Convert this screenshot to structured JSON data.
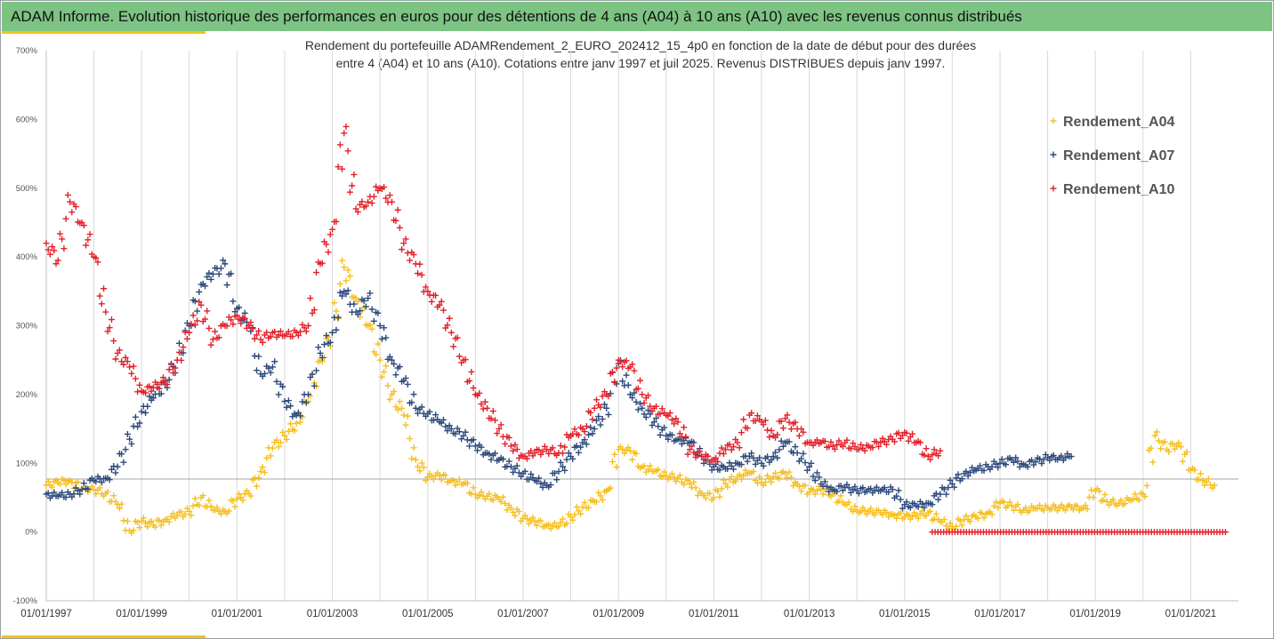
{
  "header": {
    "title": "ADAM Informe. Evolution historique des performances en euros pour des détentions de 4 ans (A04) à 10 ans (A10) avec les revenus connus distribués"
  },
  "colors": {
    "header_bg": "#7dc383",
    "accent": "#f3c31d",
    "gridline": "#d9d9d9",
    "hline": "#a6a6a6"
  },
  "chart_data": {
    "type": "scatter",
    "title": "Rendement du portefeuille ADAMRendement_2_EURO_202412_15_4p0  en fonction de la date de début pour des durées",
    "subtitle": "entre 4 (A04) et 10 ans (A10). Cotations  entre janv 1997 et juil 2025. Revenus DISTRIBUES depuis janv 1997.",
    "xlabel": "",
    "ylabel": "",
    "x_range": [
      "1997-01-01",
      "2022-01-01"
    ],
    "ylim": [
      -100,
      700
    ],
    "y_ticks": [
      -100,
      0,
      100,
      200,
      300,
      400,
      500,
      600,
      700
    ],
    "y_tick_labels": [
      "-100%",
      "0%",
      "100%",
      "200%",
      "300%",
      "400%",
      "500%",
      "600%",
      "700%"
    ],
    "x_ticks": [
      "1997-01-01",
      "1999-01-01",
      "2001-01-01",
      "2003-01-01",
      "2005-01-01",
      "2007-01-01",
      "2009-01-01",
      "2011-01-01",
      "2013-01-01",
      "2015-01-01",
      "2017-01-01",
      "2019-01-01",
      "2021-01-01"
    ],
    "x_tick_labels": [
      "01/01/1997",
      "01/01/1999",
      "01/01/2001",
      "01/01/2003",
      "01/01/2005",
      "01/01/2007",
      "01/01/2009",
      "01/01/2011",
      "01/01/2013",
      "01/01/2015",
      "01/01/2017",
      "01/01/2019",
      "01/01/2021"
    ],
    "reference_line_y": 77,
    "marker": "+",
    "grid": "vertical",
    "legend": "right",
    "series": [
      {
        "name": "Rendement_A04",
        "color": "#f6bf1f",
        "points": [
          [
            "1997-01-01",
            68
          ],
          [
            "1997-04-01",
            72
          ],
          [
            "1997-07-01",
            75
          ],
          [
            "1997-10-01",
            62
          ],
          [
            "1998-01-01",
            62
          ],
          [
            "1998-04-01",
            56
          ],
          [
            "1998-07-01",
            40
          ],
          [
            "1998-10-01",
            2
          ],
          [
            "1999-01-01",
            16
          ],
          [
            "1999-04-01",
            10
          ],
          [
            "1999-07-01",
            18
          ],
          [
            "1999-10-01",
            24
          ],
          [
            "2000-01-01",
            30
          ],
          [
            "2000-04-01",
            50
          ],
          [
            "2000-07-01",
            32
          ],
          [
            "2000-10-01",
            30
          ],
          [
            "2001-01-01",
            48
          ],
          [
            "2001-04-01",
            56
          ],
          [
            "2001-07-01",
            88
          ],
          [
            "2001-10-01",
            122
          ],
          [
            "2002-01-01",
            140
          ],
          [
            "2002-04-01",
            158
          ],
          [
            "2002-07-01",
            190
          ],
          [
            "2002-10-01",
            250
          ],
          [
            "2003-01-01",
            290
          ],
          [
            "2003-04-01",
            385
          ],
          [
            "2003-07-01",
            340
          ],
          [
            "2003-10-01",
            300
          ],
          [
            "2004-01-01",
            250
          ],
          [
            "2004-04-01",
            200
          ],
          [
            "2004-07-01",
            170
          ],
          [
            "2004-10-01",
            105
          ],
          [
            "2005-01-01",
            80
          ],
          [
            "2005-04-01",
            82
          ],
          [
            "2005-07-01",
            75
          ],
          [
            "2005-10-01",
            70
          ],
          [
            "2006-01-01",
            55
          ],
          [
            "2006-04-01",
            52
          ],
          [
            "2006-07-01",
            48
          ],
          [
            "2006-10-01",
            35
          ],
          [
            "2007-01-01",
            20
          ],
          [
            "2007-04-01",
            15
          ],
          [
            "2007-07-01",
            10
          ],
          [
            "2007-10-01",
            8
          ],
          [
            "2008-01-01",
            22
          ],
          [
            "2008-04-01",
            36
          ],
          [
            "2008-07-01",
            44
          ],
          [
            "2008-10-01",
            60
          ],
          [
            "2009-01-01",
            120
          ],
          [
            "2009-04-01",
            118
          ],
          [
            "2009-07-01",
            95
          ],
          [
            "2009-10-01",
            88
          ],
          [
            "2010-01-01",
            82
          ],
          [
            "2010-04-01",
            78
          ],
          [
            "2010-07-01",
            70
          ],
          [
            "2010-10-01",
            56
          ],
          [
            "2011-01-01",
            50
          ],
          [
            "2011-04-01",
            70
          ],
          [
            "2011-07-01",
            80
          ],
          [
            "2011-10-01",
            86
          ],
          [
            "2012-01-01",
            72
          ],
          [
            "2012-04-01",
            80
          ],
          [
            "2012-07-01",
            85
          ],
          [
            "2012-10-01",
            70
          ],
          [
            "2013-01-01",
            58
          ],
          [
            "2013-04-01",
            62
          ],
          [
            "2013-07-01",
            55
          ],
          [
            "2013-10-01",
            40
          ],
          [
            "2014-01-01",
            32
          ],
          [
            "2014-04-01",
            30
          ],
          [
            "2014-07-01",
            28
          ],
          [
            "2014-10-01",
            26
          ],
          [
            "2015-01-01",
            22
          ],
          [
            "2015-04-01",
            24
          ],
          [
            "2015-07-01",
            28
          ],
          [
            "2015-10-01",
            15
          ],
          [
            "2016-01-01",
            8
          ],
          [
            "2016-04-01",
            18
          ],
          [
            "2016-07-01",
            22
          ],
          [
            "2016-10-01",
            28
          ],
          [
            "2017-01-01",
            42
          ],
          [
            "2017-04-01",
            38
          ],
          [
            "2017-07-01",
            32
          ],
          [
            "2017-10-01",
            34
          ],
          [
            "2018-01-01",
            36
          ],
          [
            "2018-04-01",
            35
          ],
          [
            "2018-07-01",
            36
          ],
          [
            "2018-10-01",
            35
          ],
          [
            "2019-01-01",
            60
          ],
          [
            "2019-04-01",
            44
          ],
          [
            "2019-07-01",
            42
          ],
          [
            "2019-10-01",
            46
          ],
          [
            "2020-01-01",
            55
          ],
          [
            "2020-04-01",
            140
          ],
          [
            "2020-07-01",
            120
          ],
          [
            "2020-10-01",
            130
          ],
          [
            "2021-01-01",
            90
          ],
          [
            "2021-04-01",
            75
          ],
          [
            "2021-07-01",
            68
          ]
        ]
      },
      {
        "name": "Rendement_A07",
        "color": "#2d4a7c",
        "points": [
          [
            "1997-01-01",
            55
          ],
          [
            "1997-04-01",
            52
          ],
          [
            "1997-07-01",
            55
          ],
          [
            "1997-10-01",
            62
          ],
          [
            "1998-01-01",
            75
          ],
          [
            "1998-04-01",
            78
          ],
          [
            "1998-07-01",
            95
          ],
          [
            "1998-10-01",
            135
          ],
          [
            "1999-01-01",
            175
          ],
          [
            "1999-04-01",
            195
          ],
          [
            "1999-07-01",
            215
          ],
          [
            "1999-10-01",
            250
          ],
          [
            "2000-01-01",
            300
          ],
          [
            "2000-04-01",
            360
          ],
          [
            "2000-07-01",
            375
          ],
          [
            "2000-10-01",
            390
          ],
          [
            "2001-01-01",
            325
          ],
          [
            "2001-04-01",
            300
          ],
          [
            "2001-07-01",
            230
          ],
          [
            "2001-10-01",
            240
          ],
          [
            "2002-01-01",
            190
          ],
          [
            "2002-04-01",
            170
          ],
          [
            "2002-07-01",
            200
          ],
          [
            "2002-10-01",
            260
          ],
          [
            "2003-01-01",
            290
          ],
          [
            "2003-04-01",
            350
          ],
          [
            "2003-07-01",
            320
          ],
          [
            "2003-10-01",
            340
          ],
          [
            "2004-01-01",
            300
          ],
          [
            "2004-04-01",
            250
          ],
          [
            "2004-07-01",
            220
          ],
          [
            "2004-10-01",
            180
          ],
          [
            "2005-01-01",
            172
          ],
          [
            "2005-04-01",
            160
          ],
          [
            "2005-07-01",
            150
          ],
          [
            "2005-10-01",
            140
          ],
          [
            "2006-01-01",
            125
          ],
          [
            "2006-04-01",
            115
          ],
          [
            "2006-07-01",
            105
          ],
          [
            "2006-10-01",
            95
          ],
          [
            "2007-01-01",
            85
          ],
          [
            "2007-04-01",
            75
          ],
          [
            "2007-07-01",
            68
          ],
          [
            "2007-10-01",
            88
          ],
          [
            "2008-01-01",
            110
          ],
          [
            "2008-04-01",
            130
          ],
          [
            "2008-07-01",
            150
          ],
          [
            "2008-10-01",
            180
          ],
          [
            "2009-01-01",
            245
          ],
          [
            "2009-04-01",
            200
          ],
          [
            "2009-07-01",
            180
          ],
          [
            "2009-10-01",
            160
          ],
          [
            "2010-01-01",
            140
          ],
          [
            "2010-04-01",
            135
          ],
          [
            "2010-07-01",
            130
          ],
          [
            "2010-10-01",
            110
          ],
          [
            "2011-01-01",
            95
          ],
          [
            "2011-04-01",
            92
          ],
          [
            "2011-07-01",
            100
          ],
          [
            "2011-10-01",
            110
          ],
          [
            "2012-01-01",
            100
          ],
          [
            "2012-04-01",
            110
          ],
          [
            "2012-07-01",
            130
          ],
          [
            "2012-10-01",
            115
          ],
          [
            "2013-01-01",
            95
          ],
          [
            "2013-04-01",
            70
          ],
          [
            "2013-07-01",
            62
          ],
          [
            "2013-10-01",
            65
          ],
          [
            "2014-01-01",
            60
          ],
          [
            "2014-04-01",
            62
          ],
          [
            "2014-07-01",
            60
          ],
          [
            "2014-10-01",
            62
          ],
          [
            "2015-01-01",
            40
          ],
          [
            "2015-04-01",
            38
          ],
          [
            "2015-07-01",
            42
          ],
          [
            "2015-10-01",
            55
          ],
          [
            "2016-01-01",
            70
          ],
          [
            "2016-04-01",
            85
          ],
          [
            "2016-07-01",
            90
          ],
          [
            "2016-10-01",
            95
          ],
          [
            "2017-01-01",
            100
          ],
          [
            "2017-04-01",
            105
          ],
          [
            "2017-07-01",
            98
          ],
          [
            "2017-10-01",
            102
          ],
          [
            "2018-01-01",
            108
          ],
          [
            "2018-04-01",
            108
          ],
          [
            "2018-07-01",
            110
          ]
        ]
      },
      {
        "name": "Rendement_A10",
        "color": "#e3202a",
        "points": [
          [
            "1997-01-01",
            420
          ],
          [
            "1997-04-01",
            395
          ],
          [
            "1997-07-01",
            480
          ],
          [
            "1997-10-01",
            450
          ],
          [
            "1998-01-01",
            400
          ],
          [
            "1998-04-01",
            320
          ],
          [
            "1998-07-01",
            260
          ],
          [
            "1998-10-01",
            240
          ],
          [
            "1999-01-01",
            205
          ],
          [
            "1999-04-01",
            210
          ],
          [
            "1999-07-01",
            220
          ],
          [
            "1999-10-01",
            250
          ],
          [
            "2000-01-01",
            290
          ],
          [
            "2000-04-01",
            330
          ],
          [
            "2000-07-01",
            280
          ],
          [
            "2000-10-01",
            300
          ],
          [
            "2001-01-01",
            315
          ],
          [
            "2001-04-01",
            300
          ],
          [
            "2001-07-01",
            280
          ],
          [
            "2001-10-01",
            290
          ],
          [
            "2002-01-01",
            285
          ],
          [
            "2002-04-01",
            290
          ],
          [
            "2002-07-01",
            300
          ],
          [
            "2002-10-01",
            390
          ],
          [
            "2003-01-01",
            440
          ],
          [
            "2003-04-01",
            580
          ],
          [
            "2003-07-01",
            470
          ],
          [
            "2003-10-01",
            480
          ],
          [
            "2004-01-01",
            500
          ],
          [
            "2004-04-01",
            480
          ],
          [
            "2004-07-01",
            420
          ],
          [
            "2004-10-01",
            390
          ],
          [
            "2005-01-01",
            350
          ],
          [
            "2005-04-01",
            330
          ],
          [
            "2005-07-01",
            290
          ],
          [
            "2005-10-01",
            250
          ],
          [
            "2006-01-01",
            200
          ],
          [
            "2006-04-01",
            180
          ],
          [
            "2006-07-01",
            150
          ],
          [
            "2006-10-01",
            125
          ],
          [
            "2007-01-01",
            110
          ],
          [
            "2007-04-01",
            115
          ],
          [
            "2007-07-01",
            120
          ],
          [
            "2007-10-01",
            115
          ],
          [
            "2008-01-01",
            140
          ],
          [
            "2008-04-01",
            150
          ],
          [
            "2008-07-01",
            180
          ],
          [
            "2008-10-01",
            200
          ],
          [
            "2009-01-01",
            250
          ],
          [
            "2009-04-01",
            240
          ],
          [
            "2009-07-01",
            200
          ],
          [
            "2009-10-01",
            180
          ],
          [
            "2010-01-01",
            170
          ],
          [
            "2010-04-01",
            160
          ],
          [
            "2010-07-01",
            120
          ],
          [
            "2010-10-01",
            110
          ],
          [
            "2011-01-01",
            105
          ],
          [
            "2011-04-01",
            120
          ],
          [
            "2011-07-01",
            130
          ],
          [
            "2011-10-01",
            170
          ],
          [
            "2012-01-01",
            160
          ],
          [
            "2012-04-01",
            140
          ],
          [
            "2012-07-01",
            165
          ],
          [
            "2012-10-01",
            150
          ],
          [
            "2013-01-01",
            130
          ],
          [
            "2013-04-01",
            130
          ],
          [
            "2013-07-01",
            125
          ],
          [
            "2013-10-01",
            130
          ],
          [
            "2014-01-01",
            120
          ],
          [
            "2014-04-01",
            125
          ],
          [
            "2014-07-01",
            130
          ],
          [
            "2014-10-01",
            135
          ],
          [
            "2015-01-01",
            145
          ],
          [
            "2015-04-01",
            130
          ],
          [
            "2015-07-01",
            110
          ],
          [
            "2015-10-01",
            118
          ]
        ],
        "zero_segment": [
          "2015-08-01",
          "2021-10-01",
          0
        ]
      }
    ]
  }
}
